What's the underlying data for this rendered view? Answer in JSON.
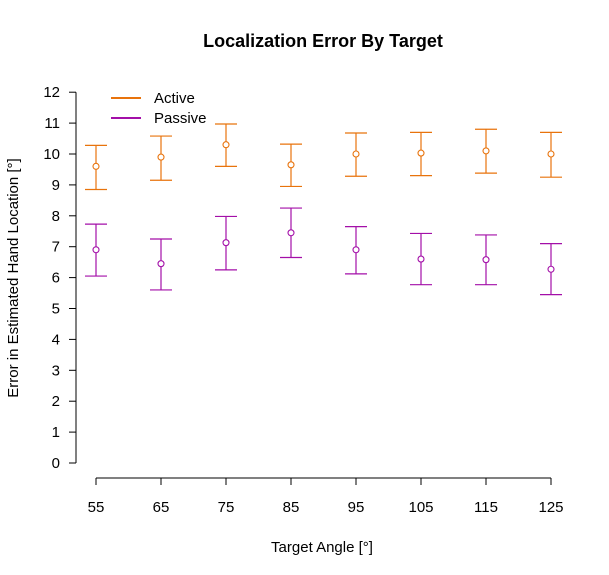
{
  "chart_data": {
    "type": "scatter",
    "title": "Localization Error By Target",
    "xlabel": "Target Angle [°]",
    "ylabel": "Error in Estimated Hand Location [°]",
    "x": [
      55,
      65,
      75,
      85,
      95,
      105,
      115,
      125
    ],
    "x_tick_labels": [
      "55",
      "65",
      "75",
      "85",
      "95",
      "105",
      "115",
      "125"
    ],
    "y_ticks": [
      0,
      1,
      2,
      3,
      4,
      5,
      6,
      7,
      8,
      9,
      10,
      11,
      12
    ],
    "y_tick_labels": [
      "0",
      "1",
      "2",
      "3",
      "4",
      "5",
      "6",
      "7",
      "8",
      "9",
      "10",
      "11",
      "12"
    ],
    "ylim": [
      0,
      12
    ],
    "grid": false,
    "legend_position": "top-left",
    "series": [
      {
        "name": "Active",
        "color": "#e8730c",
        "values": [
          9.6,
          9.9,
          10.3,
          9.65,
          10.0,
          10.03,
          10.1,
          10.0
        ],
        "lower": [
          8.85,
          9.15,
          9.6,
          8.95,
          9.28,
          9.3,
          9.38,
          9.25
        ],
        "upper": [
          10.28,
          10.58,
          10.97,
          10.32,
          10.68,
          10.7,
          10.8,
          10.7
        ]
      },
      {
        "name": "Passive",
        "color": "#a30fa8",
        "values": [
          6.9,
          6.45,
          7.13,
          7.45,
          6.9,
          6.6,
          6.58,
          6.27
        ],
        "lower": [
          6.05,
          5.6,
          6.25,
          6.65,
          6.12,
          5.77,
          5.77,
          5.45
        ],
        "upper": [
          7.73,
          7.25,
          7.98,
          8.25,
          7.65,
          7.43,
          7.38,
          7.1
        ]
      }
    ]
  }
}
